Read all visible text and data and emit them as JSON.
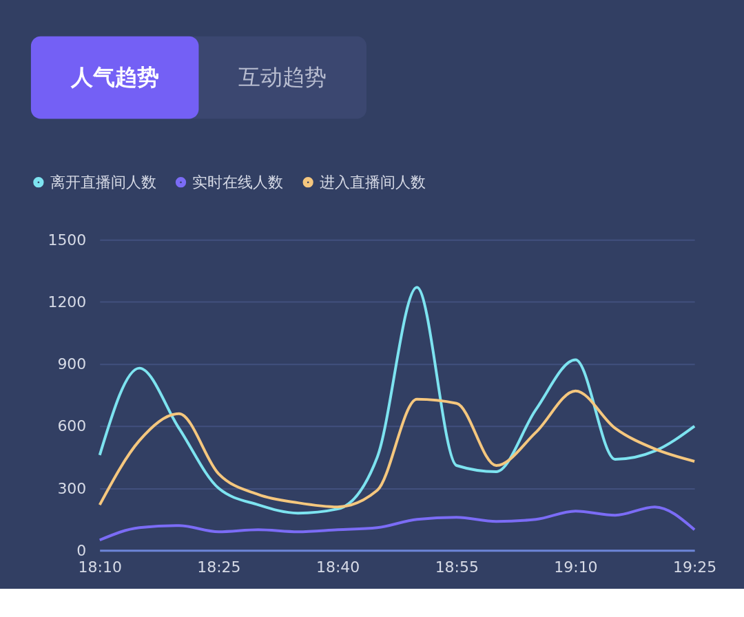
{
  "chart_data": {
    "type": "line",
    "annotations": [
      "人气趋势",
      "互动趋势"
    ],
    "x": [
      18.1667,
      18.25,
      18.3333,
      18.4167,
      18.5,
      18.5833,
      18.6667,
      18.75,
      18.8333,
      18.9167,
      19.0,
      19.0833,
      19.1667,
      19.25,
      19.3333,
      19.4167
    ],
    "series": [
      {
        "name": "离开直播间人数",
        "color": "#7de3f0",
        "values": [
          460,
          880,
          590,
          300,
          220,
          180,
          200,
          450,
          1270,
          410,
          380,
          680,
          920,
          440,
          480,
          600
        ]
      },
      {
        "name": "实时在线人数",
        "color": "#7b6cf6",
        "values": [
          50,
          110,
          120,
          90,
          100,
          90,
          100,
          110,
          150,
          160,
          140,
          150,
          190,
          170,
          210,
          100
        ]
      },
      {
        "name": "进入直播间人数",
        "color": "#f5c77e",
        "values": [
          220,
          530,
          660,
          370,
          270,
          230,
          210,
          290,
          730,
          710,
          410,
          570,
          770,
          590,
          490,
          430
        ]
      }
    ],
    "xlim": [
      18.1667,
      19.4167
    ],
    "xticks": [
      {
        "value": 18.1667,
        "label": "18:10"
      },
      {
        "value": 18.4167,
        "label": "18:25"
      },
      {
        "value": 18.6667,
        "label": "18:40"
      },
      {
        "value": 18.9167,
        "label": "18:55"
      },
      {
        "value": 19.1667,
        "label": "19:10"
      },
      {
        "value": 19.4167,
        "label": "19:25"
      }
    ],
    "ylim": [
      0,
      1500
    ],
    "yticks": [
      0,
      300,
      600,
      900,
      1200,
      1500
    ],
    "grid": "y",
    "legend": "top left",
    "marker": "none",
    "line_style": "solid"
  }
}
